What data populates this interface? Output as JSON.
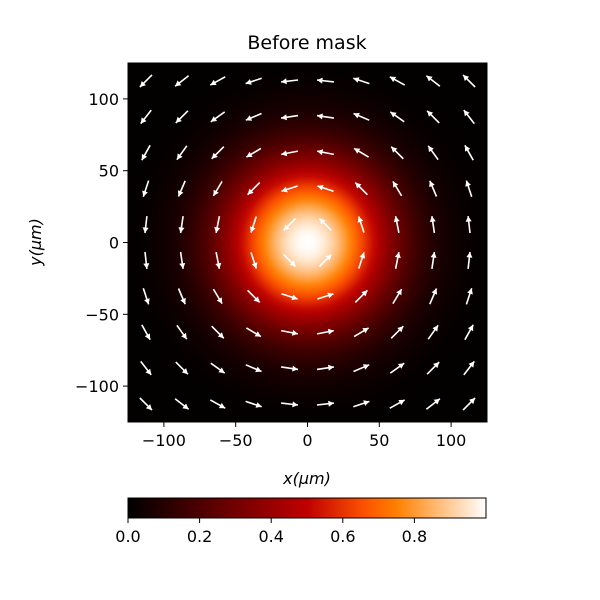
{
  "chart_data": {
    "type": "heatmap",
    "title": "Before mask",
    "xlabel": "x(μm)",
    "ylabel": "y(μm)",
    "xlim": [
      -125,
      125
    ],
    "ylim": [
      -125,
      125
    ],
    "xticks": [
      -100,
      -50,
      0,
      50,
      100
    ],
    "yticks": [
      -100,
      -50,
      0,
      50,
      100
    ],
    "xtick_labels": [
      "−100",
      "−50",
      "0",
      "50",
      "100"
    ],
    "ytick_labels": [
      "−100",
      "−50",
      "0",
      "50",
      "100"
    ],
    "intensity": {
      "shape": "gaussian",
      "center": [
        0,
        0
      ],
      "sigma_um": 40,
      "peak": 1.0
    },
    "colorbar": {
      "colormap": "gist_heat",
      "range": [
        0,
        1
      ],
      "orientation": "horizontal",
      "ticks": [
        0,
        0.2,
        0.4,
        0.6,
        0.8
      ],
      "tick_labels": [
        "0.0",
        "0.2",
        "0.4",
        "0.6",
        "0.8"
      ]
    },
    "vector_field": {
      "type": "quiver",
      "pattern": "counter-clockwise vortex",
      "color": "#ffffff",
      "grid_x": [
        -112.5,
        -87.5,
        -62.5,
        -37.5,
        -12.5,
        12.5,
        37.5,
        62.5,
        87.5,
        112.5
      ],
      "grid_y": [
        -112.5,
        -87.5,
        -62.5,
        -37.5,
        -12.5,
        12.5,
        37.5,
        62.5,
        87.5,
        112.5
      ]
    },
    "grid": false
  }
}
